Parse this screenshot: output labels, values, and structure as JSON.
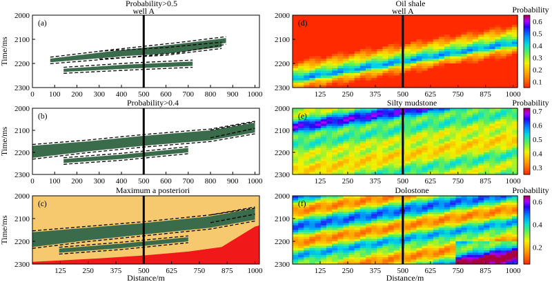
{
  "colors": {
    "facies": "#3a6b4a",
    "background": "#ffffff",
    "map_background": "#f7c96e",
    "map_red": "#f01818",
    "well": "#000000",
    "horizon": "#000000"
  },
  "chart_data": [
    {
      "id": "a",
      "type": "heatmap",
      "panel_label": "(a)",
      "title": "Probability>0.5",
      "well_label": "well A",
      "ylabel": "Time/ms",
      "xlabel": "",
      "xlim": [
        0,
        1020
      ],
      "ylim": [
        2000,
        2300
      ],
      "xticks": [
        0,
        100,
        200,
        300,
        400,
        500,
        600,
        700,
        800,
        900,
        1000
      ],
      "yticks": [
        2000,
        2100,
        2200,
        2300
      ],
      "well_x": 500,
      "bands": [
        {
          "x": [
            80,
            350,
            650,
            870
          ],
          "top": [
            2180,
            2150,
            2120,
            2095
          ],
          "bot": [
            2195,
            2175,
            2150,
            2115
          ]
        },
        {
          "x": [
            300,
            600,
            850
          ],
          "top": [
            2155,
            2140,
            2118
          ],
          "bot": [
            2175,
            2160,
            2132
          ]
        },
        {
          "x": [
            140,
            420,
            720
          ],
          "top": [
            2222,
            2205,
            2192
          ],
          "bot": [
            2235,
            2222,
            2210
          ]
        }
      ]
    },
    {
      "id": "b",
      "type": "heatmap",
      "panel_label": "(b)",
      "title": "Probability>0.4",
      "well_label": "",
      "ylabel": "Time/ms",
      "xlabel": "",
      "xlim": [
        0,
        1020
      ],
      "ylim": [
        2000,
        2300
      ],
      "xticks": [
        0,
        100,
        200,
        300,
        400,
        500,
        600,
        700,
        800,
        900,
        1000
      ],
      "yticks": [
        2000,
        2100,
        2200,
        2300
      ],
      "well_x": 500,
      "bands": [
        {
          "x": [
            0,
            250,
            500,
            800,
            1000
          ],
          "top": [
            2170,
            2150,
            2125,
            2100,
            2065
          ],
          "bot": [
            2225,
            2195,
            2170,
            2145,
            2110
          ]
        },
        {
          "x": [
            800,
            1000
          ],
          "top": [
            2105,
            2068
          ],
          "bot": [
            2128,
            2085
          ]
        },
        {
          "x": [
            140,
            400,
            700
          ],
          "top": [
            2230,
            2210,
            2180
          ],
          "bot": [
            2248,
            2230,
            2200
          ]
        }
      ]
    },
    {
      "id": "c",
      "type": "heatmap",
      "panel_label": "(c)",
      "title": "Maximum a posteriori",
      "well_label": "",
      "ylabel": "Time/ms",
      "xlabel": "Distance/m",
      "xlim": [
        0,
        1020
      ],
      "ylim": [
        2000,
        2300
      ],
      "xticks": [
        125,
        250,
        375,
        500,
        625,
        750,
        875,
        1000
      ],
      "yticks": [
        2000,
        2100,
        2200,
        2300
      ],
      "well_x": 500,
      "bands": [
        {
          "x": [
            0,
            250,
            500,
            800,
            1000
          ],
          "top": [
            2160,
            2140,
            2120,
            2090,
            2060
          ],
          "bot": [
            2225,
            2195,
            2170,
            2140,
            2105
          ]
        },
        {
          "x": [
            800,
            1000
          ],
          "top": [
            2090,
            2055
          ],
          "bot": [
            2112,
            2075
          ]
        },
        {
          "x": [
            120,
            400,
            700
          ],
          "top": [
            2232,
            2210,
            2182
          ],
          "bot": [
            2250,
            2230,
            2200
          ]
        }
      ],
      "red_zone": {
        "x": [
          0,
          300,
          500,
          700,
          850,
          1000,
          1020
        ],
        "top": [
          2290,
          2275,
          2262,
          2245,
          2225,
          2135,
          2130
        ]
      }
    },
    {
      "id": "d",
      "type": "heatmap",
      "panel_label": "(d)",
      "title": "Oil shale",
      "well_label": "well A",
      "colorbar_title": "Probability",
      "xlabel": "",
      "xlim": [
        0,
        1020
      ],
      "ylim": [
        2000,
        2300
      ],
      "xticks": [
        125,
        250,
        375,
        500,
        625,
        750,
        875,
        1000
      ],
      "yticks": [
        2000,
        2100,
        2200,
        2300
      ],
      "colorbar_ticks": [
        "0.6",
        "0.5",
        "0.4",
        "0.3",
        "0.2",
        "0.1"
      ],
      "colorbar_range": [
        0.05,
        0.65
      ],
      "well_x": 500
    },
    {
      "id": "e",
      "type": "heatmap",
      "panel_label": "(e)",
      "title": "Silty mudstone",
      "well_label": "",
      "colorbar_title": "Probability",
      "xlabel": "",
      "xlim": [
        0,
        1020
      ],
      "ylim": [
        2000,
        2300
      ],
      "xticks": [
        125,
        250,
        375,
        500,
        625,
        750,
        875,
        1000
      ],
      "yticks": [
        2000,
        2100,
        2200,
        2300
      ],
      "colorbar_ticks": [
        "0.7",
        "0.6",
        "0.5",
        "0.4",
        "0.3"
      ],
      "colorbar_range": [
        0.25,
        0.72
      ],
      "well_x": 500
    },
    {
      "id": "f",
      "type": "heatmap",
      "panel_label": "(f)",
      "title": "Dolostone",
      "well_label": "",
      "colorbar_title": "Probability",
      "xlabel": "Distance/m",
      "xlim": [
        0,
        1020
      ],
      "ylim": [
        2000,
        2300
      ],
      "xticks": [
        125,
        250,
        375,
        500,
        625,
        750,
        875,
        1000
      ],
      "yticks": [
        2000,
        2100,
        2200,
        2300
      ],
      "colorbar_ticks": [
        "0.6",
        "0.4",
        "0.2"
      ],
      "colorbar_range": [
        0.05,
        0.65
      ],
      "well_x": 500
    }
  ]
}
